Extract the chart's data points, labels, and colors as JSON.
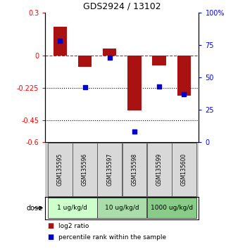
{
  "title": "GDS2924 / 13102",
  "samples": [
    "GSM135595",
    "GSM135596",
    "GSM135597",
    "GSM135598",
    "GSM135599",
    "GSM135600"
  ],
  "log2_ratio": [
    0.2,
    -0.08,
    0.05,
    -0.38,
    -0.07,
    -0.28
  ],
  "percentile_rank": [
    78,
    42,
    65,
    8,
    43,
    37
  ],
  "ylim_left": [
    -0.6,
    0.3
  ],
  "ylim_right": [
    0,
    100
  ],
  "yticks_left": [
    0.3,
    0,
    -0.225,
    -0.45,
    -0.6
  ],
  "yticks_right": [
    100,
    75,
    50,
    25,
    0
  ],
  "ytick_labels_left": [
    "0.3",
    "0",
    "-0.225",
    "-0.45",
    "-0.6"
  ],
  "ytick_labels_right": [
    "100%",
    "75",
    "50",
    "25",
    "0"
  ],
  "hlines": [
    -0.225,
    -0.45
  ],
  "dashed_hline": 0,
  "bar_color": "#aa1111",
  "dot_color": "#0000cc",
  "dose_groups": [
    {
      "label": "1 ug/kg/d",
      "indices": [
        0,
        1
      ],
      "color": "#ccffcc"
    },
    {
      "label": "10 ug/kg/d",
      "indices": [
        2,
        3
      ],
      "color": "#aaddaa"
    },
    {
      "label": "1000 ug/kg/d",
      "indices": [
        4,
        5
      ],
      "color": "#88cc88"
    }
  ],
  "dose_label": "dose",
  "legend_red": "log2 ratio",
  "legend_blue": "percentile rank within the sample",
  "bar_width": 0.55,
  "dot_size": 22
}
